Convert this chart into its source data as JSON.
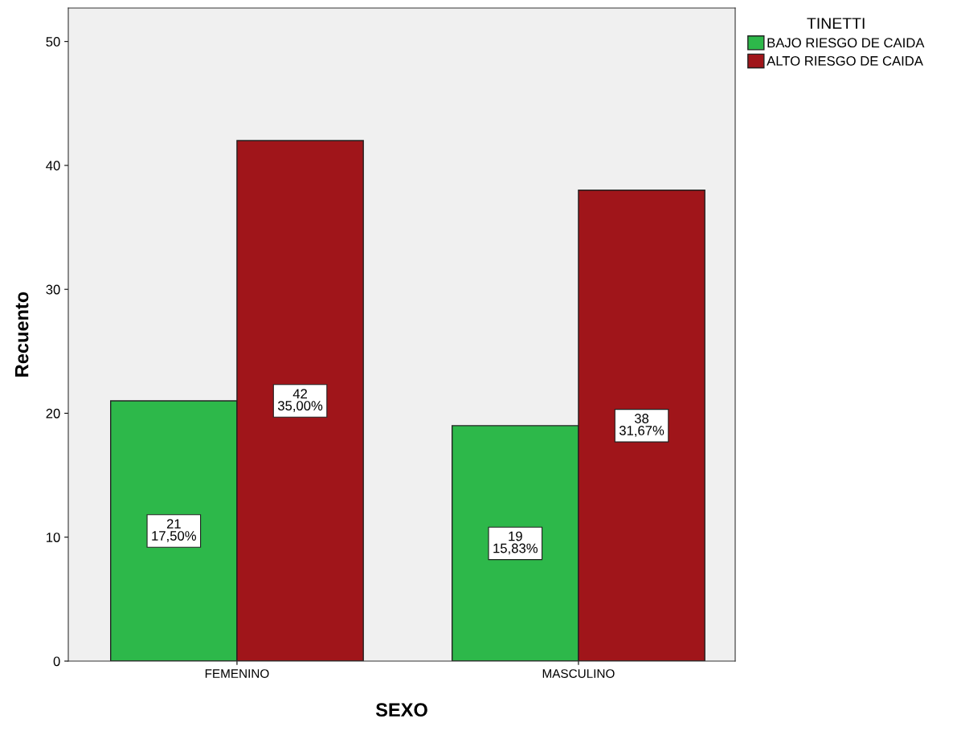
{
  "chart_data": {
    "type": "bar",
    "xlabel": "SEXO",
    "ylabel": "Recuento",
    "legend_title": "TINETTI",
    "categories": [
      "FEMENINO",
      "MASCULINO"
    ],
    "series": [
      {
        "name": "BAJO RIESGO DE CAIDA",
        "color": "#2db84a",
        "values": [
          21,
          19
        ],
        "value_labels": [
          "21\n17,50%",
          "19\n15,83%"
        ]
      },
      {
        "name": "ALTO RIESGO DE CAIDA",
        "color": "#a0151a",
        "values": [
          42,
          38
        ],
        "value_labels": [
          "42\n35,00%",
          "38\n31,67%"
        ]
      }
    ],
    "ylim": [
      0,
      52.7
    ],
    "yticks": [
      0,
      10,
      20,
      30,
      40,
      50
    ],
    "grid": false,
    "legend": "top right"
  }
}
